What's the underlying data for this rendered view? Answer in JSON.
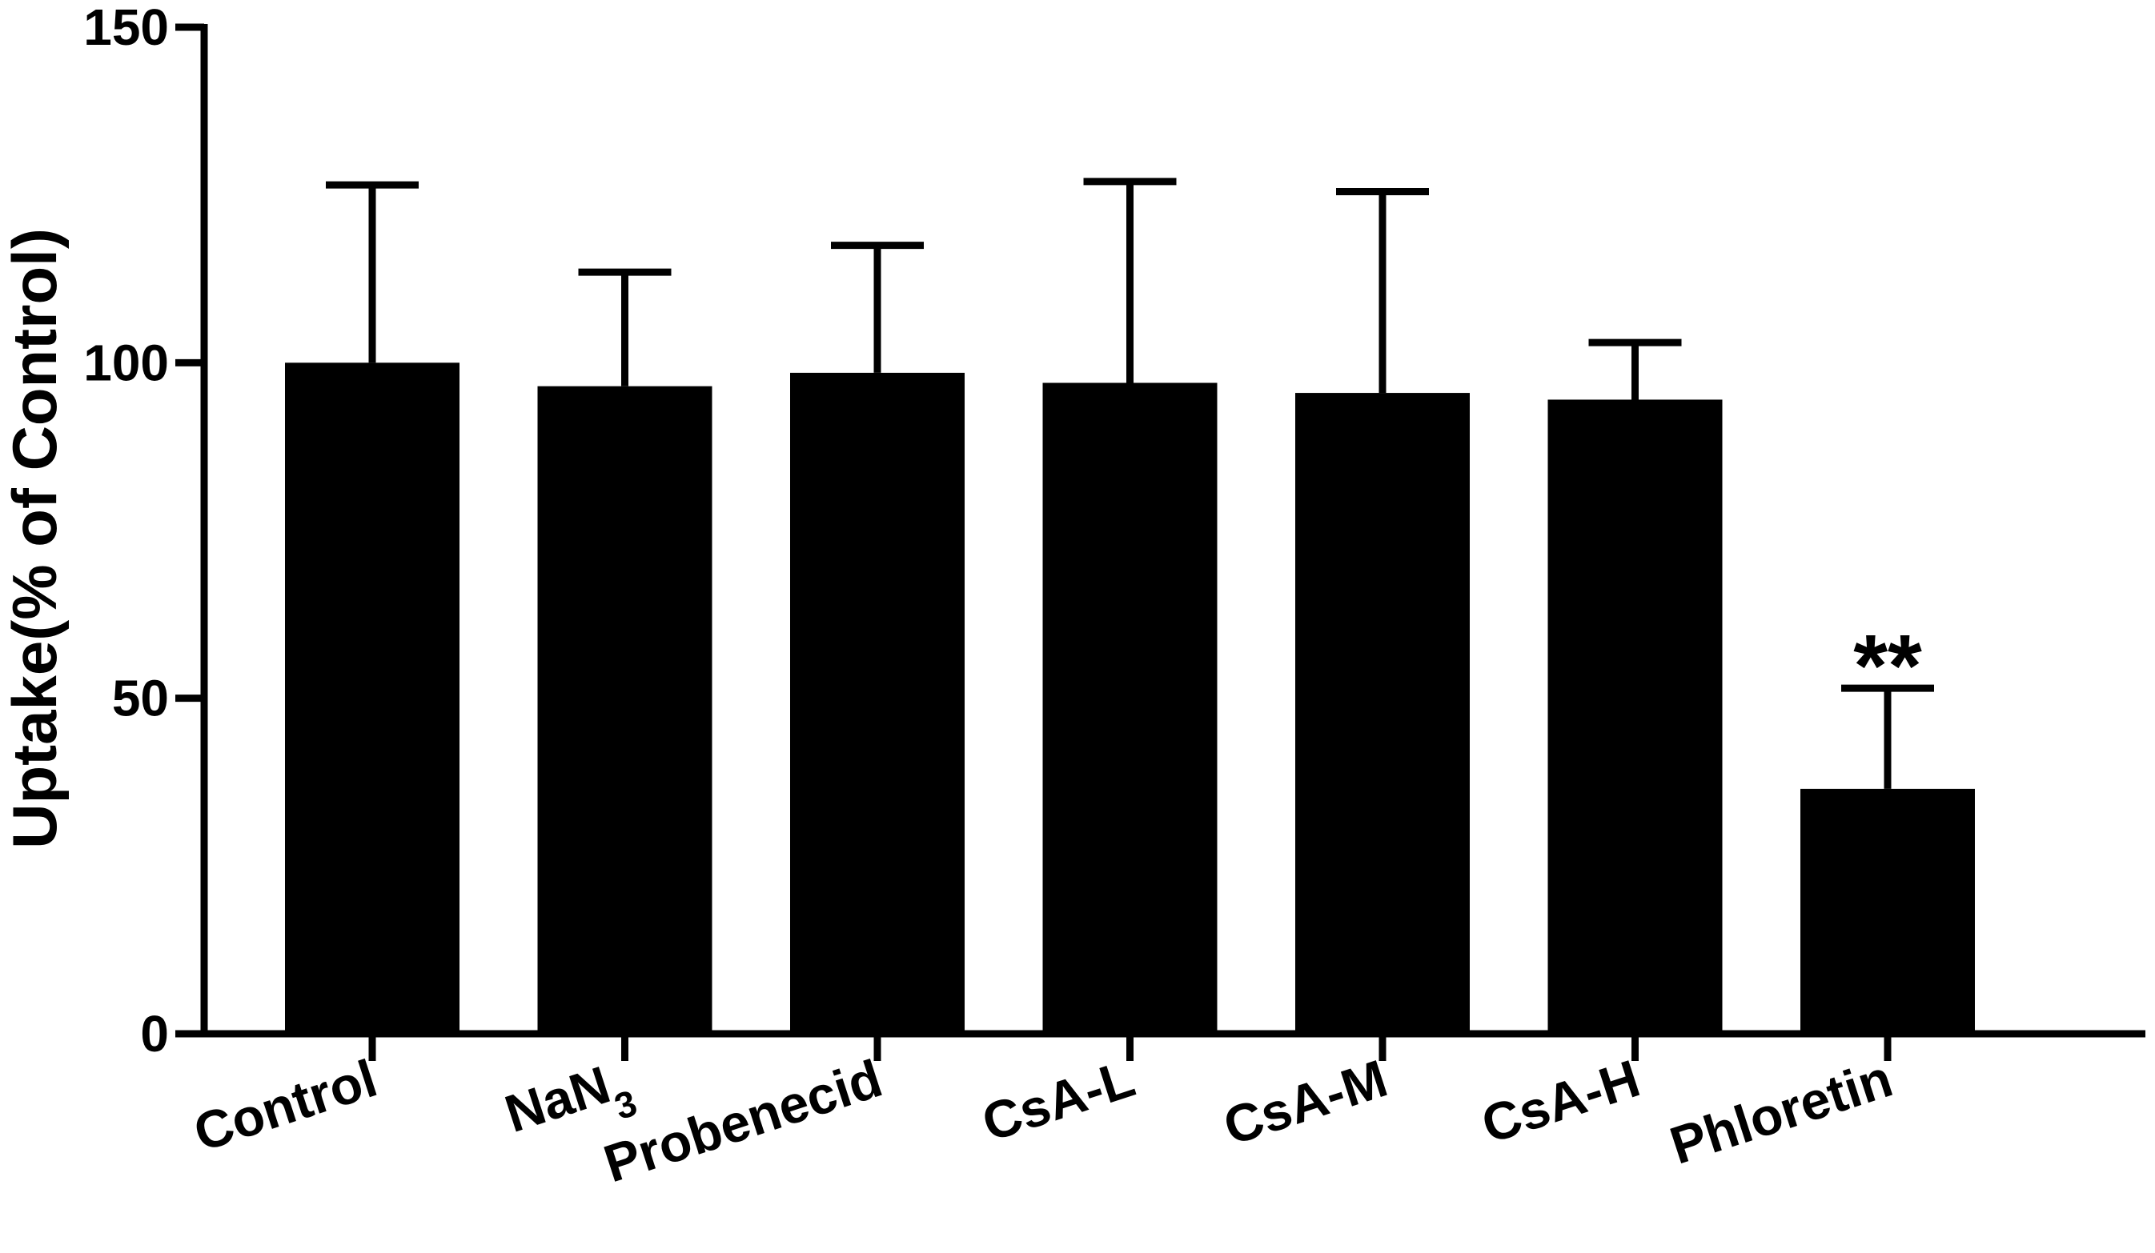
{
  "chart_data": {
    "type": "bar",
    "title": "",
    "xlabel": "",
    "ylabel": "Uptake(% of Control)",
    "ylim": [
      0,
      150
    ],
    "yticks": [
      0,
      50,
      100,
      150
    ],
    "grid": false,
    "legend": "none",
    "categories": [
      {
        "label": "Control",
        "sub": ""
      },
      {
        "label": "NaN",
        "sub": "3"
      },
      {
        "label": "Probenecid",
        "sub": ""
      },
      {
        "label": "CsA-L",
        "sub": ""
      },
      {
        "label": "CsA-M",
        "sub": ""
      },
      {
        "label": "CsA-H",
        "sub": ""
      },
      {
        "label": "Phloretin",
        "sub": ""
      }
    ],
    "values": [
      100,
      96.5,
      98.5,
      97,
      95.5,
      94.5,
      36.5
    ],
    "error_upper": [
      26.5,
      17,
      19,
      30,
      30,
      8.5,
      15
    ],
    "annotations": [
      {
        "category_index": 6,
        "text": "**"
      }
    ],
    "bar_color": "#000000"
  }
}
